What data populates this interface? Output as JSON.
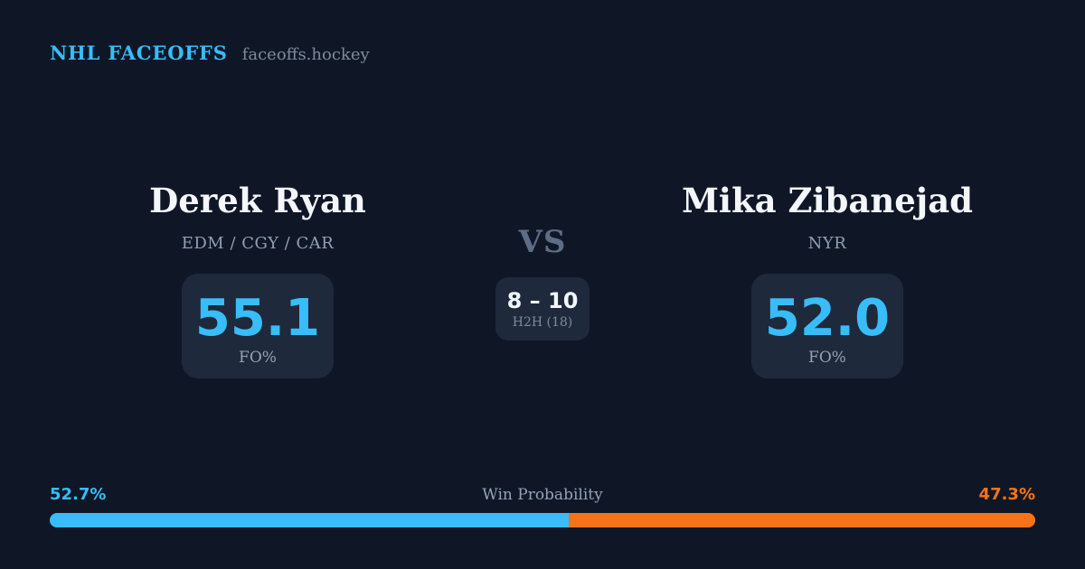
{
  "header": {
    "brand": "NHL FACEOFFS",
    "site": "faceoffs.hockey"
  },
  "matchup": {
    "players": [
      {
        "name": "Derek Ryan",
        "teams": "EDM / CGY / CAR",
        "fo_pct": "55.1",
        "fo_label": "FO%"
      },
      {
        "name": "Mika Zibanejad",
        "teams": "NYR",
        "fo_pct": "52.0",
        "fo_label": "FO%"
      }
    ],
    "vs_label": "VS",
    "h2h": {
      "score": "8 – 10",
      "label": "H2H (18)"
    }
  },
  "win_probability": {
    "label": "Win Probability",
    "left_pct_text": "52.7%",
    "right_pct_text": "47.3%",
    "left_value": 52.7,
    "right_value": 47.3,
    "left_color": "#38bdf8",
    "right_color": "#f97316"
  },
  "colors": {
    "background": "#0f1726",
    "card": "#1e293b",
    "accent_blue": "#38bdf8",
    "accent_orange": "#f97316",
    "text_primary": "#f3f6fa",
    "text_muted": "#94a3b8",
    "text_dim": "#5d6d85"
  }
}
